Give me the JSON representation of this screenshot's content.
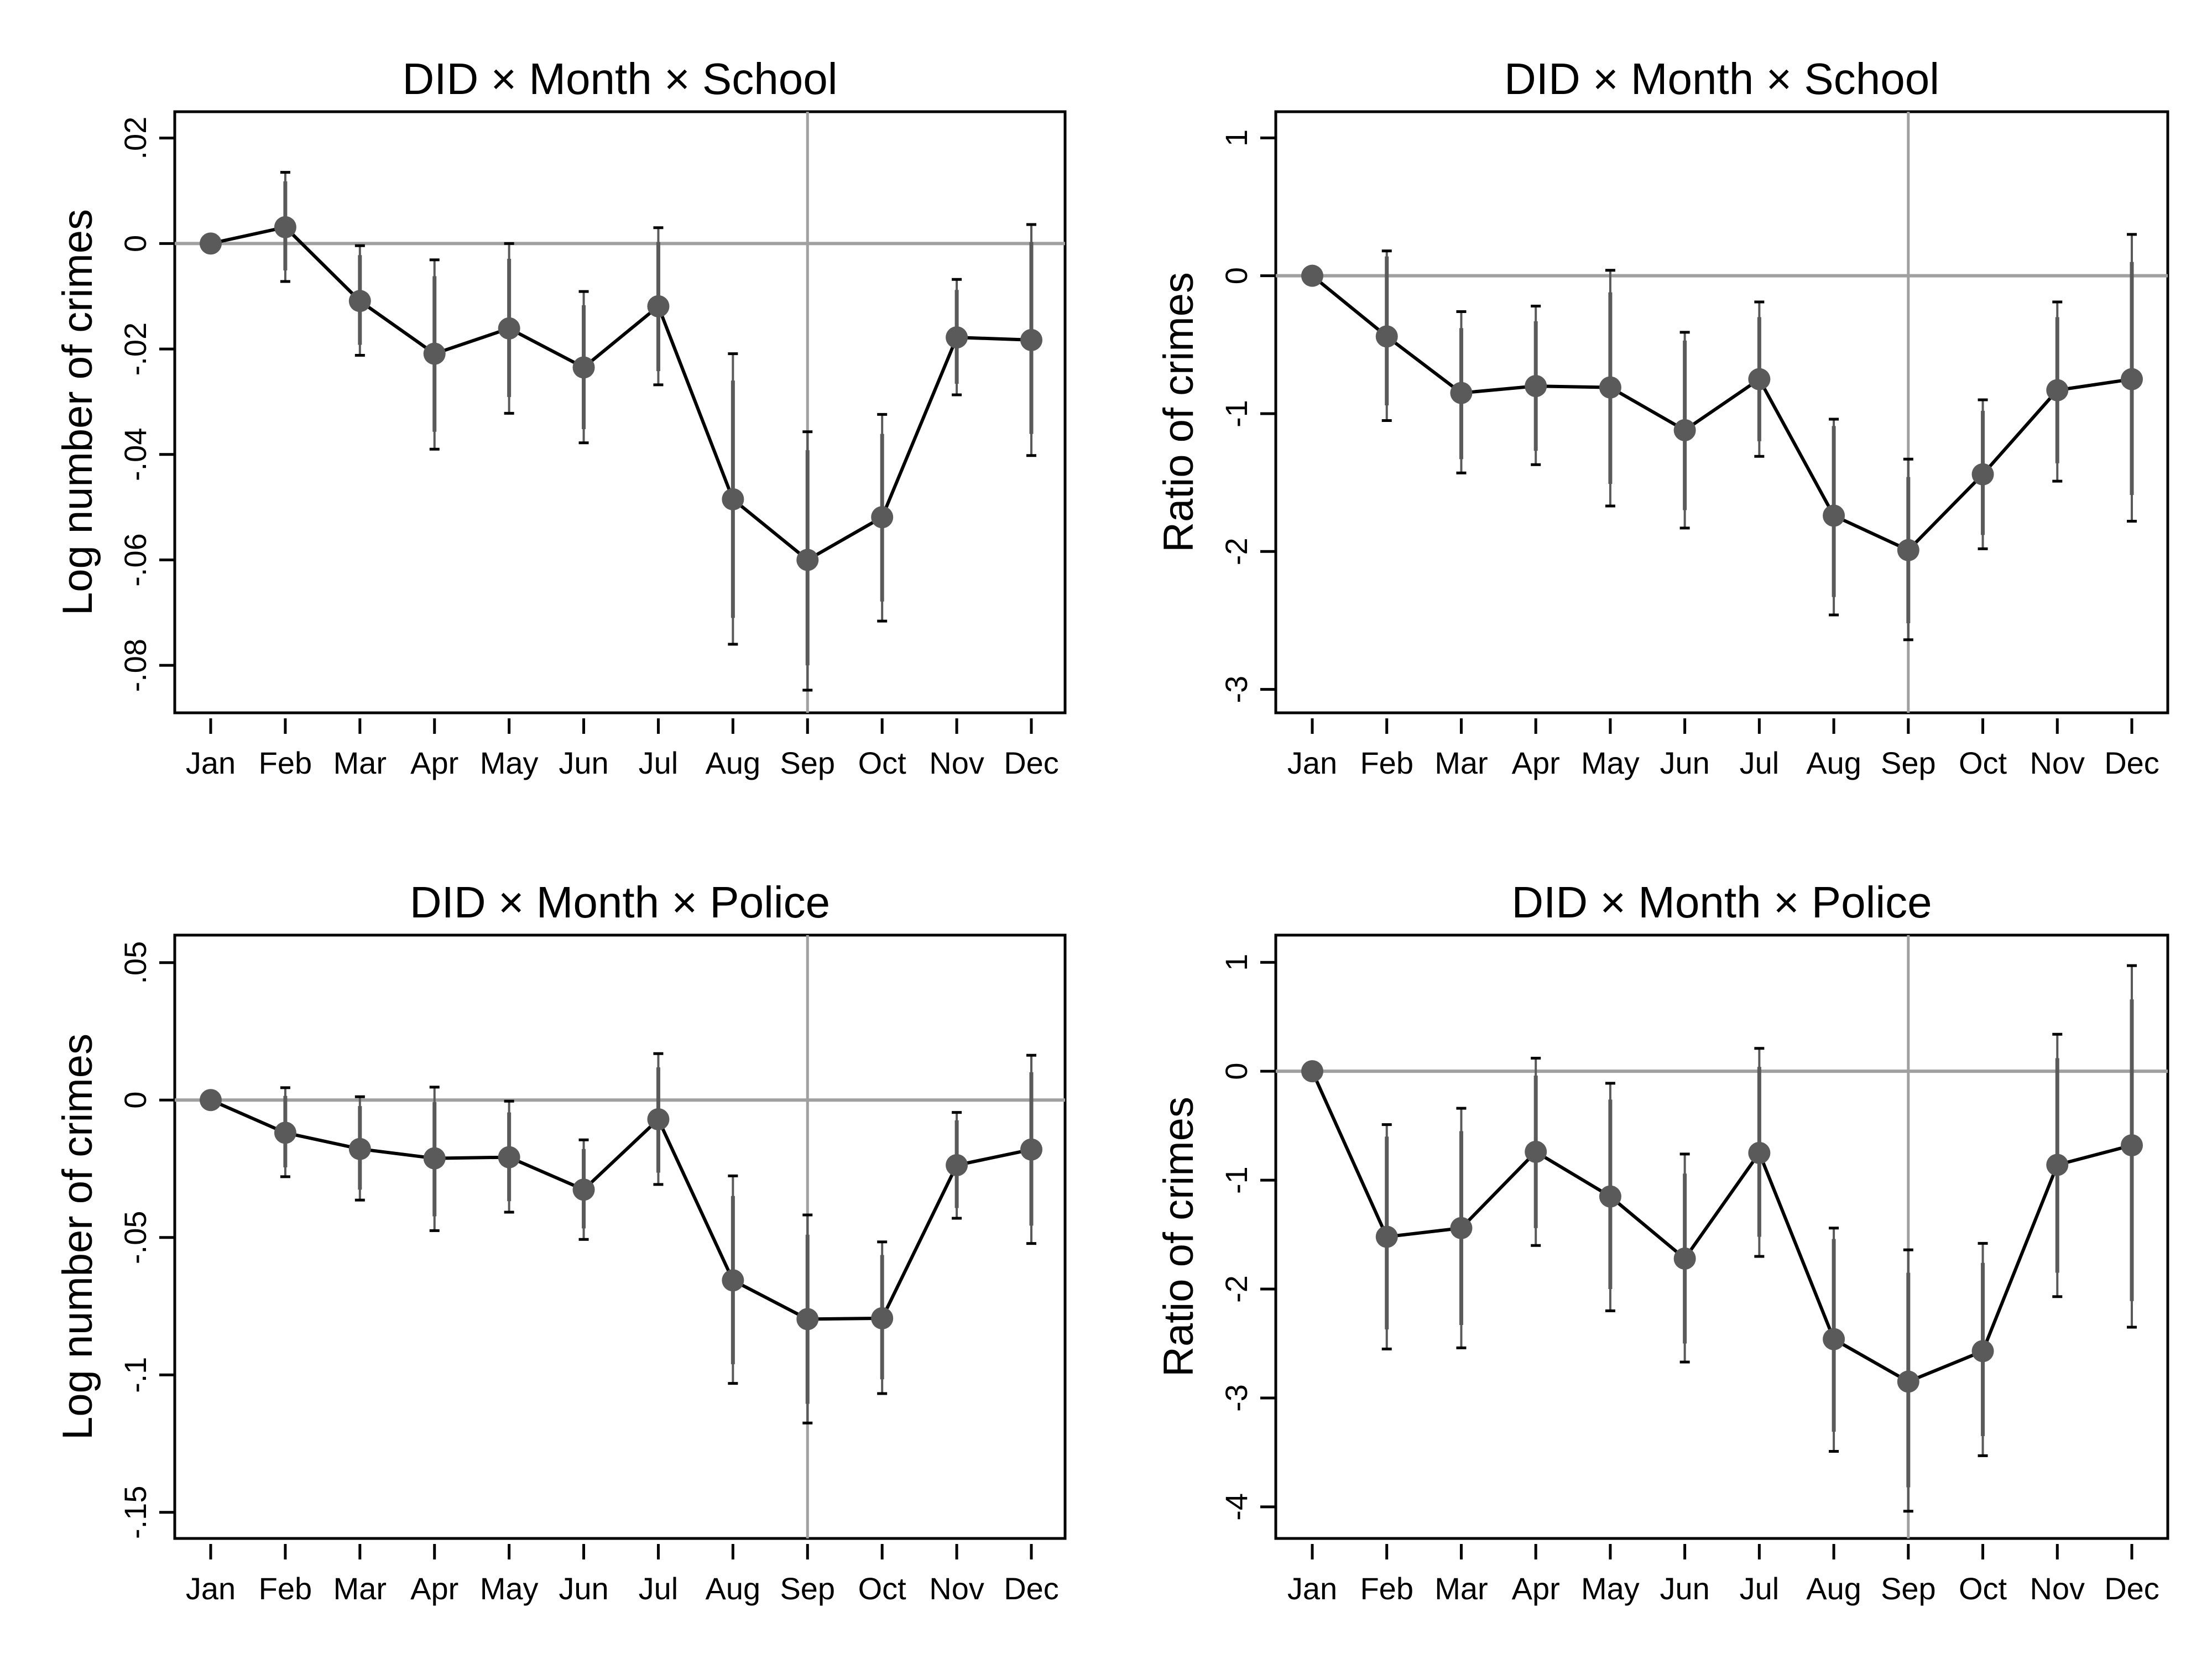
{
  "colors": {
    "marker": "#5a5a5a",
    "line": "#000000",
    "ci": "#5a5a5a",
    "refline": "#a0a0a0"
  },
  "chart_data": [
    {
      "type": "line",
      "title": "DID × Month × School",
      "ylabel": "Log number of crimes",
      "categories": [
        "Jan",
        "Feb",
        "Mar",
        "Apr",
        "May",
        "Jun",
        "Jul",
        "Aug",
        "Sep",
        "Oct",
        "Nov",
        "Dec"
      ],
      "ylim": [
        -0.089,
        0.025
      ],
      "yticks": [
        0.02,
        0,
        -0.02,
        -0.04,
        -0.06,
        -0.08
      ],
      "ytick_labels": [
        ".02",
        "0",
        "-.02",
        "-.04",
        "-.06",
        "-.08"
      ],
      "reference_lines": {
        "y": 0,
        "x": "Sep"
      },
      "grid": false,
      "values": [
        0,
        0.0031,
        -0.0109,
        -0.0209,
        -0.0161,
        -0.0235,
        -0.0119,
        -0.0485,
        -0.06,
        -0.0519,
        -0.0178,
        -0.0183
      ],
      "ci_outer": [
        [
          0,
          0
        ],
        [
          -0.0072,
          0.0135
        ],
        [
          -0.0212,
          -0.0004
        ],
        [
          -0.039,
          -0.0031
        ],
        [
          -0.0322,
          0.0
        ],
        [
          -0.0378,
          -0.0091
        ],
        [
          -0.0268,
          0.003
        ],
        [
          -0.076,
          -0.0209
        ],
        [
          -0.0847,
          -0.0357
        ],
        [
          -0.0716,
          -0.0324
        ],
        [
          -0.0287,
          -0.0068
        ],
        [
          -0.0402,
          0.0036
        ]
      ],
      "ci_inner": [
        [
          0,
          0
        ],
        [
          -0.0051,
          0.0118
        ],
        [
          -0.0192,
          -0.0022
        ],
        [
          -0.0357,
          -0.0062
        ],
        [
          -0.0291,
          -0.0029
        ],
        [
          -0.0352,
          -0.0117
        ],
        [
          -0.0242,
          0.0003
        ],
        [
          -0.071,
          -0.026
        ],
        [
          -0.08,
          -0.0392
        ],
        [
          -0.0679,
          -0.0361
        ],
        [
          -0.0266,
          -0.0088
        ],
        [
          -0.0361,
          0.0003
        ]
      ]
    },
    {
      "type": "line",
      "title": "DID × Month × School",
      "ylabel": "Ratio of crimes",
      "categories": [
        "Jan",
        "Feb",
        "Mar",
        "Apr",
        "May",
        "Jun",
        "Jul",
        "Aug",
        "Sep",
        "Oct",
        "Nov",
        "Dec"
      ],
      "ylim": [
        -3.17,
        1.19
      ],
      "yticks": [
        1,
        0,
        -1,
        -2,
        -3
      ],
      "ytick_labels": [
        "1",
        "0",
        "-1",
        "-2",
        "-3"
      ],
      "reference_lines": {
        "y": 0,
        "x": "Sep"
      },
      "grid": false,
      "values": [
        0,
        -0.44,
        -0.85,
        -0.8,
        -0.81,
        -1.12,
        -0.75,
        -1.74,
        -1.99,
        -1.44,
        -0.83,
        -0.75
      ],
      "ci_outer": [
        [
          0,
          0
        ],
        [
          -1.05,
          0.18
        ],
        [
          -1.43,
          -0.26
        ],
        [
          -1.37,
          -0.22
        ],
        [
          -1.67,
          0.04
        ],
        [
          -1.83,
          -0.41
        ],
        [
          -1.31,
          -0.19
        ],
        [
          -2.46,
          -1.04
        ],
        [
          -2.64,
          -1.33
        ],
        [
          -1.98,
          -0.9
        ],
        [
          -1.49,
          -0.19
        ],
        [
          -1.78,
          0.3
        ]
      ],
      "ci_inner": [
        [
          0,
          0
        ],
        [
          -0.94,
          0.14
        ],
        [
          -1.33,
          -0.38
        ],
        [
          -1.27,
          -0.33
        ],
        [
          -1.51,
          -0.12
        ],
        [
          -1.7,
          -0.47
        ],
        [
          -1.2,
          -0.3
        ],
        [
          -2.33,
          -1.09
        ],
        [
          -2.52,
          -1.46
        ],
        [
          -1.88,
          -0.98
        ],
        [
          -1.36,
          -0.3
        ],
        [
          -1.59,
          0.1
        ]
      ]
    },
    {
      "type": "line",
      "title": "DID × Month × Police",
      "ylabel": "Log number of crimes",
      "categories": [
        "Jan",
        "Feb",
        "Mar",
        "Apr",
        "May",
        "Jun",
        "Jul",
        "Aug",
        "Sep",
        "Oct",
        "Nov",
        "Dec"
      ],
      "ylim": [
        -0.1595,
        0.06
      ],
      "yticks": [
        0.05,
        0,
        -0.05,
        -0.1,
        -0.15
      ],
      "ytick_labels": [
        ".05",
        "0",
        "-.05",
        "-.1",
        "-.15"
      ],
      "reference_lines": {
        "y": 0,
        "x": "Sep"
      },
      "grid": false,
      "values": [
        0,
        -0.0119,
        -0.0178,
        -0.0212,
        -0.0208,
        -0.0326,
        -0.007,
        -0.0656,
        -0.0797,
        -0.0794,
        -0.0237,
        -0.018
      ],
      "ci_outer": [
        [
          0,
          0
        ],
        [
          -0.0279,
          0.0045
        ],
        [
          -0.0364,
          0.0012
        ],
        [
          -0.0475,
          0.0047
        ],
        [
          -0.0408,
          -0.0004
        ],
        [
          -0.0507,
          -0.0145
        ],
        [
          -0.0307,
          0.0169
        ],
        [
          -0.1031,
          -0.0276
        ],
        [
          -0.1175,
          -0.0418
        ],
        [
          -0.1068,
          -0.0516
        ],
        [
          -0.043,
          -0.0045
        ],
        [
          -0.0522,
          0.0163
        ]
      ],
      "ci_inner": [
        [
          0,
          0
        ],
        [
          -0.0245,
          0.0015
        ],
        [
          -0.0326,
          -0.0022
        ],
        [
          -0.0423,
          -0.0007
        ],
        [
          -0.0368,
          -0.0045
        ],
        [
          -0.0467,
          -0.0178
        ],
        [
          -0.0264,
          0.0119
        ],
        [
          -0.0961,
          -0.0349
        ],
        [
          -0.1105,
          -0.049
        ],
        [
          -0.1016,
          -0.0564
        ],
        [
          -0.0393,
          -0.0074
        ],
        [
          -0.0457,
          0.0101
        ]
      ]
    },
    {
      "type": "line",
      "title": "DID × Month × Police",
      "ylabel": "Ratio of crimes",
      "categories": [
        "Jan",
        "Feb",
        "Mar",
        "Apr",
        "May",
        "Jun",
        "Jul",
        "Aug",
        "Sep",
        "Oct",
        "Nov",
        "Dec"
      ],
      "ylim": [
        -4.29,
        1.25
      ],
      "yticks": [
        1,
        0,
        -1,
        -2,
        -3,
        -4
      ],
      "ytick_labels": [
        "1",
        "0",
        "-1",
        "-2",
        "-3",
        "-4"
      ],
      "reference_lines": {
        "y": 0,
        "x": "Sep"
      },
      "grid": false,
      "values": [
        0,
        -1.52,
        -1.44,
        -0.74,
        -1.15,
        -1.72,
        -0.75,
        -2.46,
        -2.85,
        -2.57,
        -0.86,
        -0.68
      ],
      "ci_outer": [
        [
          0,
          0
        ],
        [
          -2.55,
          -0.49
        ],
        [
          -2.54,
          -0.34
        ],
        [
          -1.6,
          0.12
        ],
        [
          -2.2,
          -0.11
        ],
        [
          -2.67,
          -0.76
        ],
        [
          -1.7,
          0.21
        ],
        [
          -3.49,
          -1.44
        ],
        [
          -4.04,
          -1.64
        ],
        [
          -3.53,
          -1.58
        ],
        [
          -2.07,
          0.34
        ],
        [
          -2.35,
          0.97
        ]
      ],
      "ci_inner": [
        [
          0,
          0
        ],
        [
          -2.37,
          -0.6
        ],
        [
          -2.33,
          -0.55
        ],
        [
          -1.44,
          -0.04
        ],
        [
          -2.0,
          -0.26
        ],
        [
          -2.5,
          -0.94
        ],
        [
          -1.52,
          0.04
        ],
        [
          -3.31,
          -1.54
        ],
        [
          -3.82,
          -1.85
        ],
        [
          -3.35,
          -1.76
        ],
        [
          -1.85,
          0.12
        ],
        [
          -2.11,
          0.66
        ]
      ]
    }
  ]
}
